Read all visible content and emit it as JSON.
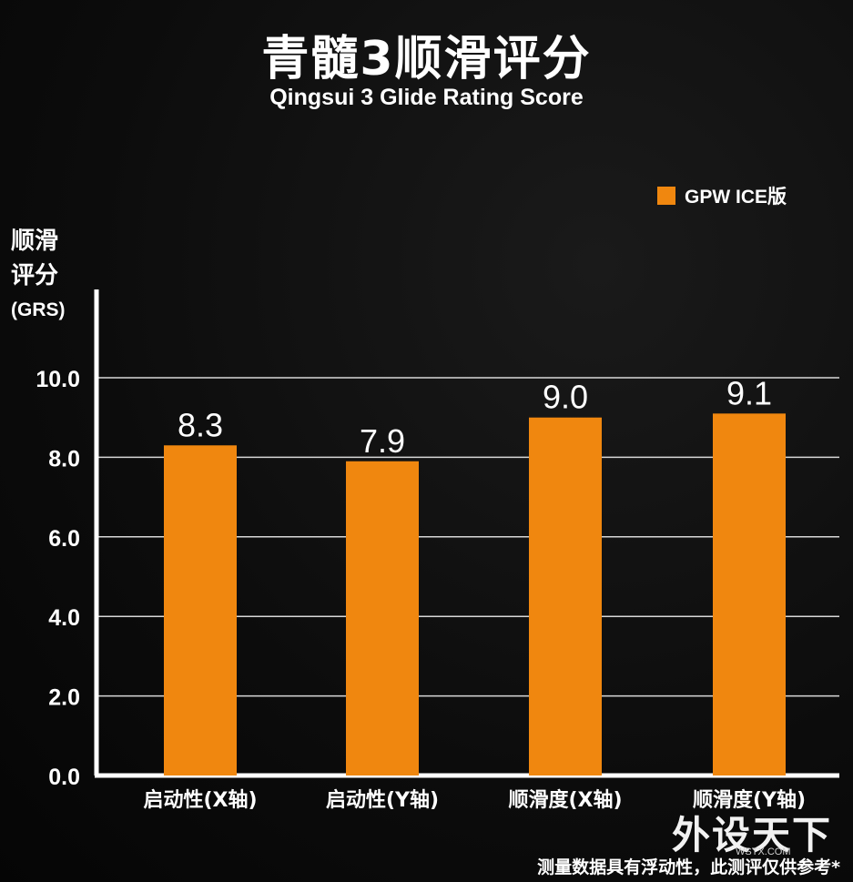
{
  "title": "青髓3顺滑评分",
  "subtitle": "Qingsui 3 Glide Rating Score",
  "ylabel_lines": [
    "顺滑",
    "评分",
    "(GRS)"
  ],
  "footnote": "测量数据具有浮动性，此测评仅供参考*",
  "watermark": {
    "main": "外设天下",
    "sub": "WSTX.COM"
  },
  "colors": {
    "bar": "#f0870f",
    "grid": "#d8d8d8",
    "background": "#0c0c0c",
    "text": "#ffffff"
  },
  "chart_data": {
    "type": "bar",
    "categories": [
      "启动性(X轴)",
      "启动性(Y轴)",
      "顺滑度(X轴)",
      "顺滑度(Y轴)"
    ],
    "series": [
      {
        "name": "GPW ICE版",
        "values": [
          8.3,
          7.9,
          9.0,
          9.1
        ]
      }
    ],
    "data_labels": [
      "8.3",
      "7.9",
      "9.0",
      "9.1"
    ],
    "yticks": [
      "0.0",
      "2.0",
      "4.0",
      "6.0",
      "8.0",
      "10.0"
    ],
    "ylim": [
      0,
      10
    ],
    "grid": true,
    "legend_position": "top-right"
  }
}
